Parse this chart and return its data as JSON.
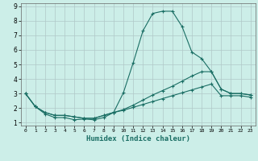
{
  "xlabel": "Humidex (Indice chaleur)",
  "bg_color": "#cceee8",
  "grid_color": "#b0c8c8",
  "line_color": "#1a6e64",
  "xlim": [
    -0.5,
    23.5
  ],
  "ylim": [
    0.8,
    9.2
  ],
  "xticks": [
    0,
    1,
    2,
    3,
    4,
    5,
    6,
    7,
    8,
    9,
    10,
    11,
    12,
    13,
    14,
    15,
    16,
    17,
    18,
    19,
    20,
    21,
    22,
    23
  ],
  "yticks": [
    1,
    2,
    3,
    4,
    5,
    6,
    7,
    8,
    9
  ],
  "line1_x": [
    0,
    1,
    2,
    3,
    4,
    5,
    6,
    7,
    8,
    9,
    10,
    11,
    12,
    13,
    14,
    15,
    16,
    17,
    18,
    19,
    20,
    21,
    22,
    23
  ],
  "line1_y": [
    3.0,
    2.1,
    1.6,
    1.35,
    1.35,
    1.2,
    1.25,
    1.2,
    1.35,
    1.7,
    3.05,
    5.1,
    7.3,
    8.5,
    8.65,
    8.65,
    7.6,
    5.85,
    5.4,
    4.5,
    3.3,
    3.0,
    3.0,
    2.9
  ],
  "line2_x": [
    0,
    1,
    2,
    3,
    4,
    5,
    6,
    7,
    8,
    9,
    10,
    11,
    12,
    13,
    14,
    15,
    16,
    17,
    18,
    19,
    20,
    21,
    22,
    23
  ],
  "line2_y": [
    3.0,
    2.1,
    1.7,
    1.5,
    1.5,
    1.4,
    1.3,
    1.3,
    1.5,
    1.7,
    1.9,
    2.2,
    2.55,
    2.9,
    3.2,
    3.5,
    3.85,
    4.2,
    4.5,
    4.5,
    3.3,
    3.0,
    3.0,
    2.9
  ],
  "line3_x": [
    0,
    1,
    2,
    3,
    4,
    5,
    6,
    7,
    8,
    9,
    10,
    11,
    12,
    13,
    14,
    15,
    16,
    17,
    18,
    19,
    20,
    21,
    22,
    23
  ],
  "line3_y": [
    3.0,
    2.1,
    1.7,
    1.5,
    1.5,
    1.4,
    1.3,
    1.3,
    1.5,
    1.7,
    1.85,
    2.05,
    2.25,
    2.45,
    2.65,
    2.85,
    3.05,
    3.25,
    3.45,
    3.65,
    2.85,
    2.85,
    2.85,
    2.75
  ]
}
